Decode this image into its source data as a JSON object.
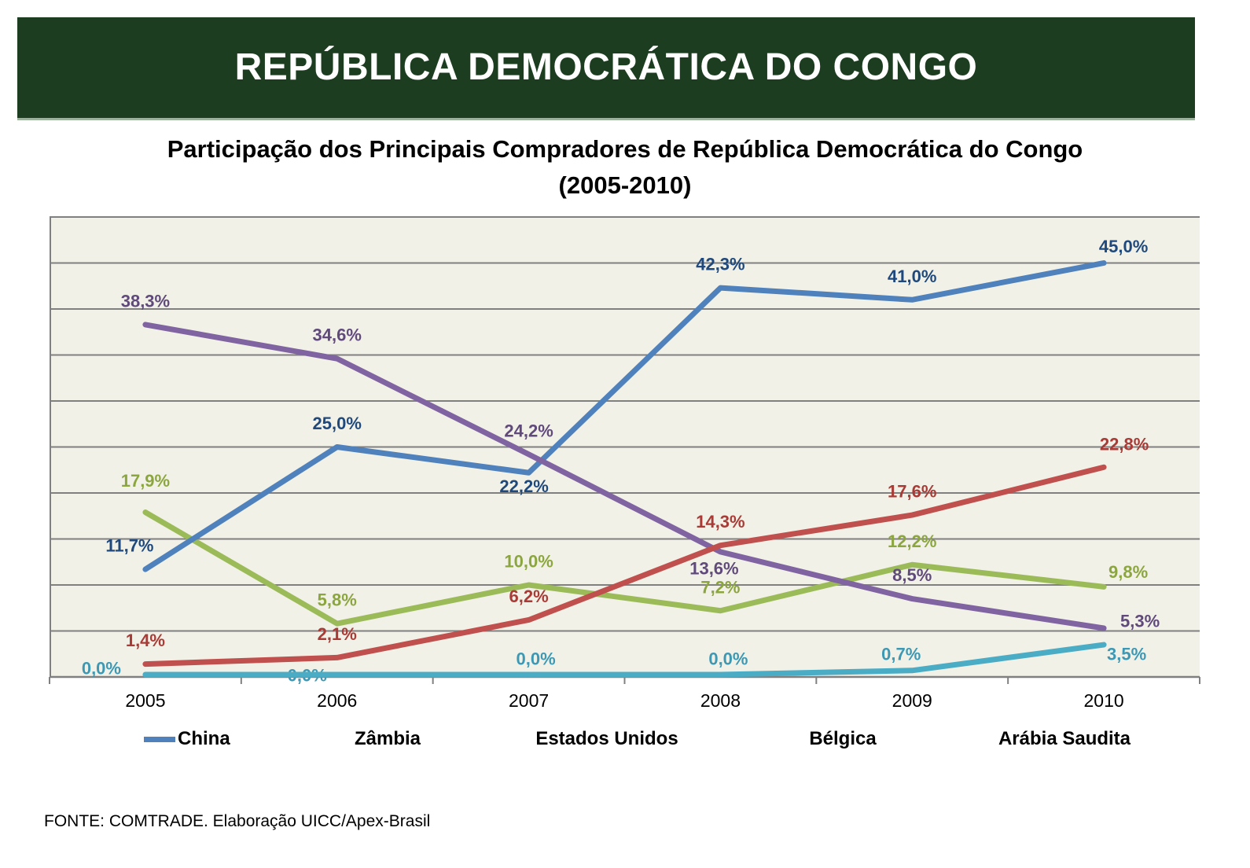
{
  "header": {
    "title": "REPÚBLICA DEMOCRÁTICA DO CONGO",
    "bg_color": "#1C3D20",
    "text_color": "#FFFFFF"
  },
  "chart_title": {
    "line1": "Participação dos Principais Compradores de República Democrática do Congo",
    "line2": "(2005-2010)"
  },
  "chart_data": {
    "type": "line",
    "title": "Participação dos Principais Compradores de República Democrática do Congo (2005-2010)",
    "categories": [
      "2005",
      "2006",
      "2007",
      "2008",
      "2009",
      "2010"
    ],
    "ylim": [
      0,
      50
    ],
    "grid_step": 5,
    "grid": true,
    "legend_position": "bottom",
    "plot_bg": "#F2F1E7",
    "gridline_color": "#808080",
    "axis_color": "#808080",
    "series": [
      {
        "name": "China",
        "color": "#4F81BD",
        "label_color": "#1F497D",
        "legend_swatch_visible": true,
        "values": [
          11.7,
          25.0,
          22.2,
          42.3,
          41.0,
          45.0
        ],
        "labels": [
          "11,7%",
          "25,0%",
          "22,2%",
          "42,3%",
          "41,0%",
          "45,0%"
        ]
      },
      {
        "name": "Zâmbia",
        "color": "#8064A2",
        "label_color": "#604A7B",
        "legend_swatch_visible": false,
        "values": [
          38.3,
          34.6,
          24.2,
          13.6,
          8.5,
          5.3
        ],
        "labels": [
          "38,3%",
          "34,6%",
          "24,2%",
          "13,6%",
          "8,5%",
          "5,3%"
        ]
      },
      {
        "name": "Estados Unidos",
        "color": "#9BBB59",
        "label_color": "#8CA63F",
        "legend_swatch_visible": false,
        "values": [
          17.9,
          5.8,
          10.0,
          7.2,
          12.2,
          9.8
        ],
        "labels": [
          "17,9%",
          "5,8%",
          "10,0%",
          "7,2%",
          "12,2%",
          "9,8%"
        ]
      },
      {
        "name": "Bélgica",
        "color": "#C0504D",
        "label_color": "#A93A35",
        "legend_swatch_visible": false,
        "values": [
          1.4,
          2.1,
          6.2,
          14.3,
          17.6,
          22.8
        ],
        "labels": [
          "1,4%",
          "2,1%",
          "6,2%",
          "14,3%",
          "17,6%",
          "22,8%"
        ]
      },
      {
        "name": "Arábia Saudita",
        "color": "#4BACC6",
        "label_color": "#3D98B4",
        "legend_swatch_visible": false,
        "values": [
          0.0,
          0.0,
          0.0,
          0.0,
          0.7,
          3.5
        ],
        "labels": [
          "0,0%",
          "0,0%",
          "0,0%",
          "0,0%",
          "0,7%",
          "3,5%"
        ]
      }
    ]
  },
  "footer": {
    "source": "FONTE: COMTRADE. Elaboração UICC/Apex-Brasil"
  }
}
